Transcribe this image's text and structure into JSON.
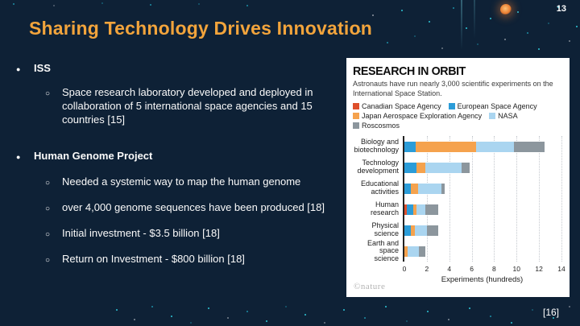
{
  "slide": {
    "page_number": "13",
    "title": "Sharing Technology Drives Innovation",
    "citation": "[16]",
    "colors": {
      "background": "#0e2136",
      "title_accent": "#f2a43c",
      "body_text": "#fafafa",
      "decor_teal": "#2fc6d8",
      "decor_orange": "#e87a2e"
    },
    "bullets": [
      {
        "label": "ISS",
        "subs": [
          "Space research laboratory developed and deployed in collaboration of 5 international space agencies and 15 countries [15]"
        ]
      },
      {
        "label": "Human Genome Project",
        "subs": [
          "Needed  a systemic way to map the human genome",
          "over 4,000  genome sequences have been produced [18]",
          "Initial investment - $3.5 billion [18]",
          "Return on Investment - $800 billion [18]"
        ]
      }
    ]
  },
  "chart_data": {
    "type": "bar",
    "orientation": "horizontal",
    "stacked": true,
    "title": "RESEARCH IN ORBIT",
    "subtitle": "Astronauts have run nearly 3,000 scientific experiments on the International Space Station.",
    "legend_position": "top",
    "grid": "vertical-dotted",
    "categories": [
      "Biology and biotechnology",
      "Technology development",
      "Educational activities",
      "Human research",
      "Physical science",
      "Earth and space science"
    ],
    "series": [
      {
        "name": "Canadian Space Agency",
        "color": "#de4f2b",
        "values": [
          0,
          0,
          0,
          0.2,
          0,
          0
        ]
      },
      {
        "name": "European Space Agency",
        "color": "#2b9cd8",
        "values": [
          1.0,
          1.1,
          0.6,
          0.6,
          0.6,
          0
        ]
      },
      {
        "name": "Japan Aerospace Exploration Agency",
        "color": "#f5a24d",
        "values": [
          5.4,
          0.8,
          0.6,
          0.3,
          0.3,
          0.3
        ]
      },
      {
        "name": "NASA",
        "color": "#aad5f0",
        "values": [
          3.4,
          3.2,
          2.1,
          0.8,
          1.1,
          1.0
        ]
      },
      {
        "name": "Roscosmos",
        "color": "#8c969d",
        "values": [
          2.7,
          0.75,
          0.3,
          1.1,
          1.0,
          0.6
        ]
      }
    ],
    "xlabel": "Experiments (hundreds)",
    "xlim": [
      0,
      14
    ],
    "xticks": [
      0,
      2,
      4,
      6,
      8,
      10,
      12,
      14
    ],
    "credit": "©nature"
  }
}
